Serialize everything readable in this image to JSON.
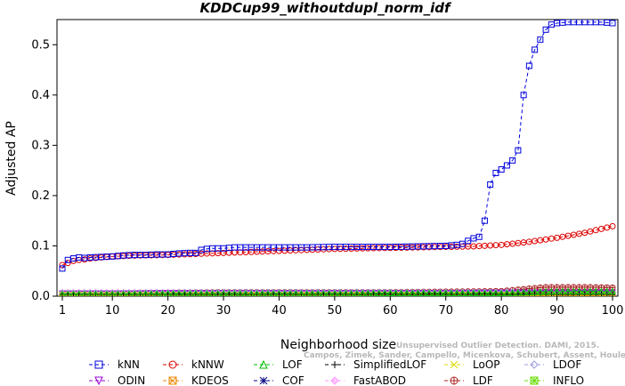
{
  "chart_data": {
    "type": "line",
    "title": "KDDCup99_withoutdupl_norm_idf",
    "xlabel": "Neighborhood size",
    "ylabel": "Adjusted AP",
    "xlim": [
      1,
      100
    ],
    "ylim": [
      0,
      0.55
    ],
    "xticks": [
      "1",
      "10",
      "20",
      "30",
      "40",
      "50",
      "60",
      "70",
      "80",
      "90",
      "100"
    ],
    "yticks": [
      "0.0",
      "0.1",
      "0.2",
      "0.3",
      "0.4",
      "0.5"
    ],
    "grid": false,
    "legend_position": "bottom",
    "series": [
      {
        "name": "kNN",
        "color": "#0000dd",
        "marker": "square",
        "dash": "dashed",
        "x": [
          1,
          2,
          3,
          4,
          5,
          6,
          8,
          10,
          12,
          14,
          16,
          18,
          20,
          22,
          24,
          25,
          26,
          27,
          28,
          30,
          32,
          34,
          36,
          38,
          40,
          45,
          50,
          55,
          60,
          65,
          70,
          72,
          73,
          74,
          75,
          76,
          77,
          78,
          79,
          80,
          81,
          82,
          83,
          84,
          85,
          86,
          87,
          88,
          89,
          90,
          92,
          94,
          96,
          98,
          100
        ],
        "values": [
          0.055,
          0.072,
          0.075,
          0.077,
          0.076,
          0.077,
          0.078,
          0.079,
          0.081,
          0.082,
          0.082,
          0.083,
          0.083,
          0.085,
          0.086,
          0.086,
          0.092,
          0.094,
          0.095,
          0.095,
          0.097,
          0.097,
          0.097,
          0.097,
          0.097,
          0.097,
          0.098,
          0.098,
          0.098,
          0.099,
          0.1,
          0.102,
          0.104,
          0.11,
          0.115,
          0.118,
          0.15,
          0.222,
          0.245,
          0.252,
          0.26,
          0.27,
          0.29,
          0.4,
          0.458,
          0.49,
          0.51,
          0.53,
          0.54,
          0.543,
          0.545,
          0.545,
          0.545,
          0.545,
          0.543
        ]
      },
      {
        "name": "kNNW",
        "color": "#dd0000",
        "marker": "circle",
        "dash": "dashed",
        "x": [
          1,
          2,
          3,
          4,
          5,
          6,
          8,
          10,
          15,
          20,
          25,
          30,
          35,
          40,
          45,
          50,
          55,
          60,
          65,
          70,
          75,
          80,
          85,
          90,
          95,
          100
        ],
        "values": [
          0.062,
          0.066,
          0.07,
          0.072,
          0.073,
          0.075,
          0.077,
          0.079,
          0.081,
          0.082,
          0.084,
          0.086,
          0.088,
          0.09,
          0.092,
          0.094,
          0.095,
          0.096,
          0.097,
          0.098,
          0.099,
          0.102,
          0.108,
          0.116,
          0.126,
          0.139
        ]
      },
      {
        "name": "LOF",
        "color": "#00bb00",
        "marker": "triangle-up",
        "dash": "dashed",
        "x": [
          1,
          10,
          20,
          30,
          40,
          50,
          60,
          70,
          80,
          85,
          90,
          95,
          100
        ],
        "values": [
          0.004,
          0.004,
          0.005,
          0.005,
          0.005,
          0.005,
          0.006,
          0.006,
          0.006,
          0.008,
          0.01,
          0.01,
          0.01
        ]
      },
      {
        "name": "SimplifiedLOF",
        "color": "#000000",
        "marker": "plus",
        "dash": "dashed",
        "x": [
          1,
          10,
          20,
          30,
          40,
          50,
          60,
          70,
          80,
          90,
          100
        ],
        "values": [
          0.004,
          0.004,
          0.004,
          0.004,
          0.004,
          0.004,
          0.004,
          0.004,
          0.004,
          0.004,
          0.004
        ]
      },
      {
        "name": "LoOP",
        "color": "#dddd00",
        "marker": "x",
        "dash": "dashed",
        "x": [
          1,
          10,
          20,
          30,
          40,
          50,
          60,
          70,
          80,
          90,
          100
        ],
        "values": [
          0.003,
          0.003,
          0.003,
          0.003,
          0.003,
          0.003,
          0.003,
          0.003,
          0.003,
          0.003,
          0.003
        ]
      },
      {
        "name": "LDOF",
        "color": "#9999dd",
        "marker": "diamond",
        "dash": "dashed",
        "x": [
          1,
          10,
          20,
          30,
          40,
          50,
          60,
          70,
          80,
          90,
          100
        ],
        "values": [
          0.007,
          0.007,
          0.007,
          0.008,
          0.008,
          0.008,
          0.008,
          0.008,
          0.008,
          0.008,
          0.008
        ]
      },
      {
        "name": "ODIN",
        "color": "#9900cc",
        "marker": "triangle-down",
        "dash": "dashed",
        "x": [
          1,
          10,
          20,
          30,
          40,
          50,
          60,
          70,
          80,
          90,
          100
        ],
        "values": [
          0.005,
          0.005,
          0.006,
          0.006,
          0.006,
          0.006,
          0.006,
          0.006,
          0.007,
          0.007,
          0.007
        ]
      },
      {
        "name": "KDEOS",
        "color": "#ee8800",
        "marker": "square-x",
        "dash": "dashed",
        "x": [
          1,
          10,
          20,
          30,
          40,
          50,
          60,
          70,
          80,
          90,
          100
        ],
        "values": [
          0.002,
          0.002,
          0.002,
          0.002,
          0.002,
          0.002,
          0.002,
          0.002,
          0.002,
          0.002,
          0.002
        ]
      },
      {
        "name": "COF",
        "color": "#000080",
        "marker": "asterisk",
        "dash": "dashed",
        "x": [
          1,
          10,
          20,
          30,
          40,
          50,
          60,
          70,
          80,
          90,
          100
        ],
        "values": [
          0.005,
          0.005,
          0.005,
          0.005,
          0.006,
          0.006,
          0.006,
          0.006,
          0.006,
          0.006,
          0.006
        ]
      },
      {
        "name": "FastABOD",
        "color": "#ff99ff",
        "marker": "diamond-filled",
        "dash": "dashed",
        "x": [
          1,
          10,
          20,
          30,
          40,
          50,
          60,
          70,
          80,
          90,
          100
        ],
        "values": [
          0.008,
          0.008,
          0.008,
          0.008,
          0.008,
          0.008,
          0.008,
          0.008,
          0.008,
          0.008,
          0.008
        ]
      },
      {
        "name": "LDF",
        "color": "#aa2222",
        "marker": "circle-plus",
        "dash": "dashed",
        "x": [
          1,
          10,
          20,
          30,
          40,
          50,
          60,
          70,
          80,
          82,
          84,
          86,
          88,
          90,
          95,
          100
        ],
        "values": [
          0.006,
          0.006,
          0.007,
          0.008,
          0.008,
          0.008,
          0.008,
          0.009,
          0.01,
          0.012,
          0.014,
          0.016,
          0.018,
          0.018,
          0.018,
          0.017
        ]
      },
      {
        "name": "INFLO",
        "color": "#66dd00",
        "marker": "square-star",
        "dash": "dashed",
        "x": [
          1,
          10,
          20,
          30,
          40,
          50,
          60,
          70,
          80,
          90,
          100
        ],
        "values": [
          0.003,
          0.003,
          0.003,
          0.003,
          0.003,
          0.003,
          0.003,
          0.003,
          0.004,
          0.004,
          0.004
        ]
      }
    ]
  },
  "watermark": {
    "line1": "Campos, Zimek, Sander, Campello, Micenkova, Schubert, Assent, Houle",
    "line2": "Unsupervised Outlier Detection. DAMI, 2015."
  }
}
